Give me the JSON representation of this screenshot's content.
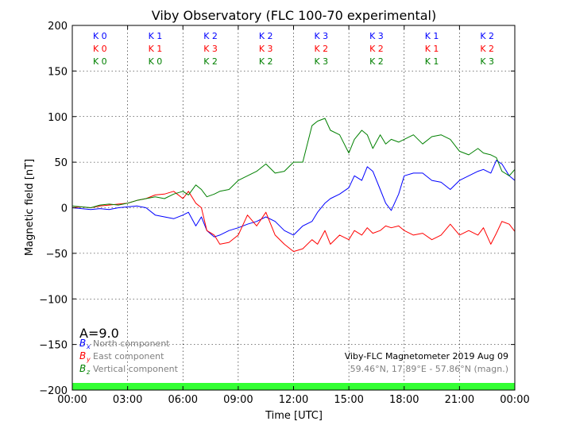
{
  "chart_data": {
    "type": "line",
    "title": "Viby Observatory (FLC 100-70 experimental)",
    "xlabel": "Time [UTC]",
    "ylabel": "Magnetic field [nT]",
    "xlim": [
      0,
      24
    ],
    "ylim": [
      -200,
      200
    ],
    "x_ticks": [
      "00:00",
      "03:00",
      "06:00",
      "09:00",
      "12:00",
      "15:00",
      "18:00",
      "21:00",
      "00:00"
    ],
    "y_ticks": [
      "200",
      "150",
      "100",
      "50",
      "0",
      "−50",
      "−100",
      "−150",
      "−200"
    ],
    "grid": true,
    "k_indices": {
      "rows": [
        {
          "color": "#0000ff",
          "labels": [
            "K 0",
            "K 1",
            "K 2",
            "K 2",
            "K 3",
            "K 3",
            "K 1",
            "K 2"
          ]
        },
        {
          "color": "#ff0000",
          "labels": [
            "K 0",
            "K 1",
            "K 3",
            "K 3",
            "K 2",
            "K 2",
            "K 1",
            "K 2"
          ]
        },
        {
          "color": "#008000",
          "labels": [
            "K 0",
            "K 0",
            "K 2",
            "K 2",
            "K 3",
            "K 2",
            "K 1",
            "K 3"
          ]
        }
      ]
    },
    "a_index_label": "A=9.0",
    "legend": {
      "placement": "bottom-left",
      "entries": [
        {
          "symbol": "B",
          "sub": "x",
          "text": "North component",
          "color": "#0000ff"
        },
        {
          "symbol": "B",
          "sub": "y",
          "text": "East component",
          "color": "#ff0000"
        },
        {
          "symbol": "B",
          "sub": "z",
          "text": "Vertical component",
          "color": "#008000"
        }
      ]
    },
    "annotation_line1": "Viby-FLC Magnetometer 2019 Aug 09",
    "annotation_line2": "59.46°N, 17.89°E - 57.86°N (magn.)",
    "status_bar_color": "#33ff33",
    "series": [
      {
        "name": "Bx North component",
        "color": "#0000ff",
        "x": [
          0,
          0.5,
          1,
          1.5,
          2,
          2.5,
          3,
          3.5,
          4,
          4.5,
          5,
          5.5,
          6,
          6.3,
          6.7,
          7,
          7.3,
          7.7,
          8,
          8.5,
          9,
          9.5,
          10,
          10.5,
          11,
          11.5,
          12,
          12.5,
          13,
          13.3,
          13.7,
          14,
          14.5,
          15,
          15.3,
          15.7,
          16,
          16.3,
          16.7,
          17,
          17.3,
          17.7,
          18,
          18.5,
          19,
          19.5,
          20,
          20.5,
          21,
          21.5,
          22,
          22.3,
          22.7,
          23,
          23.3,
          23.7,
          24
        ],
        "values": [
          0,
          -1,
          -2,
          -1,
          -2,
          0,
          1,
          2,
          0,
          -8,
          -10,
          -12,
          -8,
          -5,
          -20,
          -10,
          -25,
          -32,
          -30,
          -25,
          -22,
          -18,
          -15,
          -10,
          -15,
          -25,
          -30,
          -20,
          -15,
          -5,
          5,
          10,
          15,
          22,
          35,
          30,
          45,
          40,
          20,
          5,
          -3,
          15,
          35,
          38,
          38,
          30,
          28,
          20,
          30,
          35,
          40,
          42,
          38,
          52,
          48,
          35,
          30
        ]
      },
      {
        "name": "By East component",
        "color": "#ff0000",
        "x": [
          0,
          0.5,
          1,
          1.5,
          2,
          2.5,
          3,
          3.5,
          4,
          4.5,
          5,
          5.5,
          6,
          6.3,
          6.7,
          7,
          7.3,
          7.7,
          8,
          8.5,
          9,
          9.5,
          10,
          10.5,
          11,
          11.5,
          12,
          12.5,
          13,
          13.3,
          13.7,
          14,
          14.5,
          15,
          15.3,
          15.7,
          16,
          16.3,
          16.7,
          17,
          17.3,
          17.7,
          18,
          18.5,
          19,
          19.5,
          20,
          20.5,
          21,
          21.5,
          22,
          22.3,
          22.7,
          23,
          23.3,
          23.7,
          24
        ],
        "values": [
          0,
          1,
          0,
          2,
          3,
          4,
          5,
          8,
          10,
          14,
          15,
          18,
          10,
          18,
          5,
          0,
          -25,
          -30,
          -40,
          -38,
          -30,
          -8,
          -20,
          -5,
          -30,
          -40,
          -48,
          -45,
          -35,
          -40,
          -25,
          -40,
          -30,
          -35,
          -25,
          -30,
          -22,
          -28,
          -25,
          -20,
          -22,
          -20,
          -25,
          -30,
          -28,
          -35,
          -30,
          -18,
          -30,
          -25,
          -30,
          -22,
          -40,
          -28,
          -15,
          -18,
          -26
        ]
      },
      {
        "name": "Bz Vertical component",
        "color": "#008000",
        "x": [
          0,
          0.5,
          1,
          1.5,
          2,
          2.5,
          3,
          3.5,
          4,
          4.5,
          5,
          5.5,
          6,
          6.3,
          6.7,
          7,
          7.3,
          7.7,
          8,
          8.5,
          9,
          9.5,
          10,
          10.5,
          11,
          11.5,
          12,
          12.5,
          13,
          13.3,
          13.7,
          14,
          14.5,
          15,
          15.3,
          15.7,
          16,
          16.3,
          16.7,
          17,
          17.3,
          17.7,
          18,
          18.5,
          19,
          19.5,
          20,
          20.5,
          21,
          21.5,
          22,
          22.3,
          22.7,
          23,
          23.3,
          23.7,
          24
        ],
        "values": [
          2,
          1,
          0,
          3,
          4,
          3,
          5,
          8,
          10,
          12,
          10,
          15,
          18,
          14,
          25,
          20,
          12,
          15,
          18,
          20,
          30,
          35,
          40,
          48,
          38,
          40,
          50,
          50,
          90,
          95,
          98,
          85,
          80,
          60,
          75,
          85,
          80,
          65,
          80,
          70,
          75,
          72,
          75,
          80,
          70,
          78,
          80,
          75,
          62,
          58,
          65,
          60,
          58,
          55,
          40,
          35,
          42
        ]
      }
    ]
  }
}
